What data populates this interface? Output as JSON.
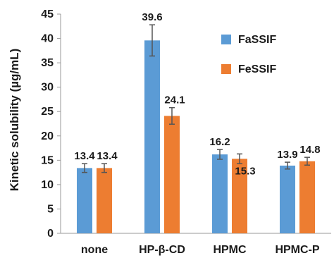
{
  "chart_data": {
    "type": "bar",
    "categories": [
      "none",
      "HP-β-CD",
      "HPMC",
      "HPMC-P"
    ],
    "series": [
      {
        "name": "FaSSIF",
        "color": "#5b9bd5",
        "values": [
          13.4,
          39.6,
          16.2,
          13.9
        ],
        "errors": [
          0.9,
          3.2,
          1.0,
          0.7
        ]
      },
      {
        "name": "FeSSIF",
        "color": "#ed7d31",
        "values": [
          13.4,
          24.1,
          15.3,
          14.8
        ],
        "errors": [
          0.9,
          1.7,
          1.0,
          0.8
        ]
      }
    ],
    "data_labels": [
      [
        "13.4",
        "39.6",
        "16.2",
        "13.9"
      ],
      [
        "13.4",
        "24.1",
        "15.3",
        "14.8"
      ]
    ],
    "ylabel": "Kinetic solubility (µg/mL)",
    "xlabel": "",
    "ylim": [
      0,
      45
    ],
    "yticks": [
      "0",
      "5",
      "10",
      "15",
      "20",
      "25",
      "30",
      "35",
      "40",
      "45"
    ],
    "grid": false,
    "legend_position": "top-right"
  }
}
